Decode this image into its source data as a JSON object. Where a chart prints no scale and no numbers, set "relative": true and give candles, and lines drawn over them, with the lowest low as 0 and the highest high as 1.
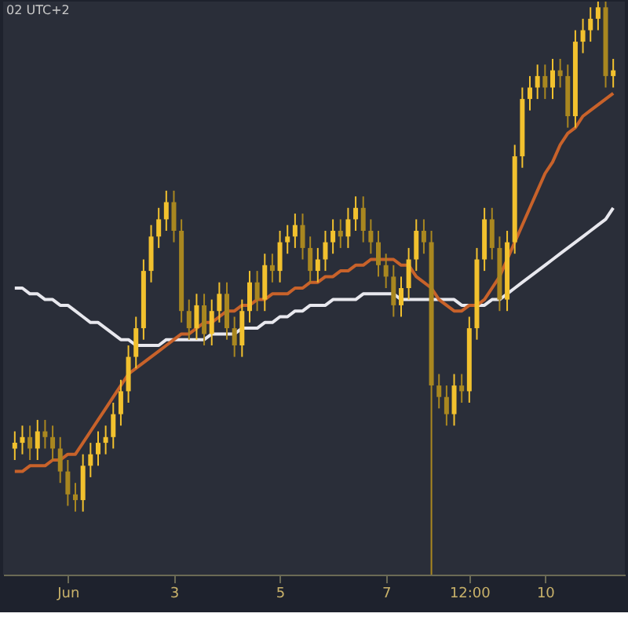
{
  "chart_data": {
    "type": "candlestick",
    "relative": true,
    "colors": [
      "#f2c12e",
      "#f2c12e",
      "#a98720",
      "#f2c12e",
      "#a98720",
      "#a98720",
      "#a98720",
      "#a98720",
      "#a98720",
      "#f2c12e",
      "#f2c12e",
      "#f2c12e",
      "#f2c12e",
      "#f2c12e",
      "#f2c12e",
      "#f2c12e",
      "#f2c12e",
      "#f2c12e",
      "#f2c12e",
      "#f2c12e",
      "#f2c12e",
      "#a98720",
      "#a98720",
      "#a98720",
      "#f2c12e",
      "#a98720",
      "#f2c12e",
      "#f2c12e",
      "#a98720",
      "#a98720",
      "#f2c12e",
      "#f2c12e",
      "#a98720",
      "#f2c12e",
      "#a98720",
      "#f2c12e",
      "#f2c12e",
      "#f2c12e",
      "#a98720",
      "#a98720",
      "#f2c12e",
      "#f2c12e",
      "#f2c12e",
      "#a98720",
      "#f2c12e",
      "#f2c12e",
      "#a98720",
      "#a98720",
      "#a98720",
      "#a98720",
      "#a98720",
      "#f2c12e",
      "#f2c12e",
      "#f2c12e",
      "#a98720",
      "#a98720",
      "#a98720",
      "#a98720",
      "#f2c12e",
      "#a98720",
      "#f2c12e",
      "#f2c12e",
      "#f2c12e",
      "#a98720",
      "#a98720",
      "#f2c12e",
      "#f2c12e",
      "#f2c12e",
      "#f2c12e",
      "#f2c12e",
      "#a98720",
      "#f2c12e",
      "#a98720",
      "#a98720",
      "#f2c12e",
      "#f2c12e",
      "#f2c12e",
      "#f2c12e",
      "#a98720",
      "#f2c12e"
    ],
    "annotations": [
      "02 UTC+2"
    ],
    "categories": [
      null,
      null,
      null,
      null,
      null,
      null,
      null,
      "Jun",
      null,
      null,
      null,
      null,
      null,
      null,
      null,
      null,
      null,
      null,
      null,
      null,
      null,
      "3",
      null,
      null,
      null,
      null,
      null,
      null,
      null,
      null,
      null,
      null,
      null,
      null,
      null,
      "5",
      null,
      null,
      null,
      null,
      null,
      null,
      null,
      null,
      null,
      null,
      null,
      null,
      null,
      "7",
      null,
      null,
      null,
      null,
      null,
      null,
      null,
      null,
      null,
      null,
      "12:00",
      null,
      null,
      null,
      null,
      null,
      null,
      null,
      null,
      null,
      "10",
      null,
      null,
      null,
      null,
      null,
      null,
      null,
      null,
      null
    ],
    "ohlc": [
      [
        0.22,
        0.25,
        0.2,
        0.23
      ],
      [
        0.23,
        0.26,
        0.21,
        0.24
      ],
      [
        0.24,
        0.26,
        0.2,
        0.22
      ],
      [
        0.22,
        0.27,
        0.2,
        0.25
      ],
      [
        0.25,
        0.27,
        0.22,
        0.24
      ],
      [
        0.24,
        0.26,
        0.2,
        0.22
      ],
      [
        0.22,
        0.24,
        0.16,
        0.18
      ],
      [
        0.18,
        0.2,
        0.12,
        0.14
      ],
      [
        0.14,
        0.16,
        0.11,
        0.13
      ],
      [
        0.13,
        0.21,
        0.11,
        0.19
      ],
      [
        0.19,
        0.23,
        0.17,
        0.21
      ],
      [
        0.21,
        0.25,
        0.19,
        0.23
      ],
      [
        0.23,
        0.26,
        0.21,
        0.24
      ],
      [
        0.24,
        0.3,
        0.22,
        0.28
      ],
      [
        0.28,
        0.34,
        0.26,
        0.32
      ],
      [
        0.32,
        0.4,
        0.3,
        0.38
      ],
      [
        0.38,
        0.45,
        0.36,
        0.43
      ],
      [
        0.43,
        0.55,
        0.41,
        0.53
      ],
      [
        0.53,
        0.61,
        0.51,
        0.59
      ],
      [
        0.59,
        0.64,
        0.57,
        0.62
      ],
      [
        0.62,
        0.67,
        0.6,
        0.65
      ],
      [
        0.65,
        0.67,
        0.58,
        0.6
      ],
      [
        0.6,
        0.62,
        0.44,
        0.46
      ],
      [
        0.46,
        0.48,
        0.41,
        0.43
      ],
      [
        0.43,
        0.49,
        0.41,
        0.47
      ],
      [
        0.47,
        0.49,
        0.4,
        0.42
      ],
      [
        0.42,
        0.48,
        0.4,
        0.46
      ],
      [
        0.46,
        0.51,
        0.44,
        0.49
      ],
      [
        0.49,
        0.51,
        0.41,
        0.43
      ],
      [
        0.43,
        0.45,
        0.38,
        0.4
      ],
      [
        0.4,
        0.48,
        0.38,
        0.46
      ],
      [
        0.46,
        0.53,
        0.44,
        0.51
      ],
      [
        0.51,
        0.53,
        0.46,
        0.48
      ],
      [
        0.48,
        0.56,
        0.46,
        0.54
      ],
      [
        0.54,
        0.56,
        0.51,
        0.53
      ],
      [
        0.53,
        0.6,
        0.51,
        0.58
      ],
      [
        0.58,
        0.61,
        0.56,
        0.59
      ],
      [
        0.59,
        0.63,
        0.57,
        0.61
      ],
      [
        0.61,
        0.63,
        0.55,
        0.57
      ],
      [
        0.57,
        0.59,
        0.51,
        0.53
      ],
      [
        0.53,
        0.57,
        0.51,
        0.55
      ],
      [
        0.55,
        0.6,
        0.53,
        0.58
      ],
      [
        0.58,
        0.62,
        0.56,
        0.6
      ],
      [
        0.6,
        0.62,
        0.57,
        0.59
      ],
      [
        0.59,
        0.64,
        0.57,
        0.62
      ],
      [
        0.62,
        0.66,
        0.6,
        0.64
      ],
      [
        0.64,
        0.66,
        0.58,
        0.6
      ],
      [
        0.6,
        0.62,
        0.56,
        0.58
      ],
      [
        0.58,
        0.6,
        0.52,
        0.54
      ],
      [
        0.54,
        0.56,
        0.5,
        0.52
      ],
      [
        0.52,
        0.54,
        0.45,
        0.47
      ],
      [
        0.47,
        0.52,
        0.45,
        0.5
      ],
      [
        0.5,
        0.57,
        0.48,
        0.55
      ],
      [
        0.55,
        0.62,
        0.53,
        0.6
      ],
      [
        0.6,
        0.62,
        0.56,
        0.58
      ],
      [
        0.58,
        0.6,
        0.0,
        0.33
      ],
      [
        0.33,
        0.35,
        0.29,
        0.31
      ],
      [
        0.31,
        0.33,
        0.26,
        0.28
      ],
      [
        0.28,
        0.35,
        0.26,
        0.33
      ],
      [
        0.33,
        0.35,
        0.3,
        0.32
      ],
      [
        0.32,
        0.45,
        0.3,
        0.43
      ],
      [
        0.43,
        0.57,
        0.41,
        0.55
      ],
      [
        0.55,
        0.64,
        0.53,
        0.62
      ],
      [
        0.62,
        0.64,
        0.55,
        0.57
      ],
      [
        0.57,
        0.59,
        0.46,
        0.48
      ],
      [
        0.48,
        0.6,
        0.46,
        0.58
      ],
      [
        0.58,
        0.75,
        0.56,
        0.73
      ],
      [
        0.73,
        0.85,
        0.71,
        0.83
      ],
      [
        0.83,
        0.87,
        0.81,
        0.85
      ],
      [
        0.85,
        0.89,
        0.83,
        0.87
      ],
      [
        0.87,
        0.89,
        0.83,
        0.85
      ],
      [
        0.85,
        0.9,
        0.83,
        0.88
      ],
      [
        0.88,
        0.9,
        0.85,
        0.87
      ],
      [
        0.87,
        0.89,
        0.78,
        0.8
      ],
      [
        0.8,
        0.95,
        0.78,
        0.93
      ],
      [
        0.93,
        0.97,
        0.91,
        0.95
      ],
      [
        0.95,
        0.99,
        0.93,
        0.97
      ],
      [
        0.97,
        1.0,
        0.95,
        0.99
      ],
      [
        0.99,
        1.0,
        0.85,
        0.87
      ],
      [
        0.87,
        0.9,
        0.85,
        0.88
      ]
    ],
    "series": [
      {
        "type": "line",
        "color": "#e8e8ee",
        "values": [
          0.5,
          0.5,
          0.49,
          0.49,
          0.48,
          0.48,
          0.47,
          0.47,
          0.46,
          0.45,
          0.44,
          0.44,
          0.43,
          0.42,
          0.41,
          0.41,
          0.4,
          0.4,
          0.4,
          0.4,
          0.41,
          0.41,
          0.41,
          0.41,
          0.41,
          0.41,
          0.42,
          0.42,
          0.42,
          0.42,
          0.43,
          0.43,
          0.43,
          0.44,
          0.44,
          0.45,
          0.45,
          0.46,
          0.46,
          0.47,
          0.47,
          0.47,
          0.48,
          0.48,
          0.48,
          0.48,
          0.49,
          0.49,
          0.49,
          0.49,
          0.49,
          0.48,
          0.48,
          0.48,
          0.48,
          0.48,
          0.48,
          0.48,
          0.48,
          0.47,
          0.47,
          0.47,
          0.47,
          0.48,
          0.48,
          0.49,
          0.5,
          0.51,
          0.52,
          0.53,
          0.54,
          0.55,
          0.56,
          0.57,
          0.58,
          0.59,
          0.6,
          0.61,
          0.62,
          0.64
        ]
      },
      {
        "type": "line",
        "color": "#c8622a",
        "values": [
          0.18,
          0.18,
          0.19,
          0.19,
          0.19,
          0.2,
          0.2,
          0.21,
          0.21,
          0.23,
          0.25,
          0.27,
          0.29,
          0.31,
          0.33,
          0.35,
          0.36,
          0.37,
          0.38,
          0.39,
          0.4,
          0.41,
          0.42,
          0.42,
          0.43,
          0.44,
          0.44,
          0.45,
          0.46,
          0.46,
          0.47,
          0.47,
          0.48,
          0.48,
          0.49,
          0.49,
          0.49,
          0.5,
          0.5,
          0.51,
          0.51,
          0.52,
          0.52,
          0.53,
          0.53,
          0.54,
          0.54,
          0.55,
          0.55,
          0.55,
          0.55,
          0.54,
          0.54,
          0.52,
          0.51,
          0.5,
          0.48,
          0.47,
          0.46,
          0.46,
          0.47,
          0.47,
          0.48,
          0.5,
          0.52,
          0.55,
          0.58,
          0.61,
          0.64,
          0.67,
          0.7,
          0.72,
          0.75,
          0.77,
          0.78,
          0.8,
          0.81,
          0.82,
          0.83,
          0.84
        ]
      }
    ]
  }
}
